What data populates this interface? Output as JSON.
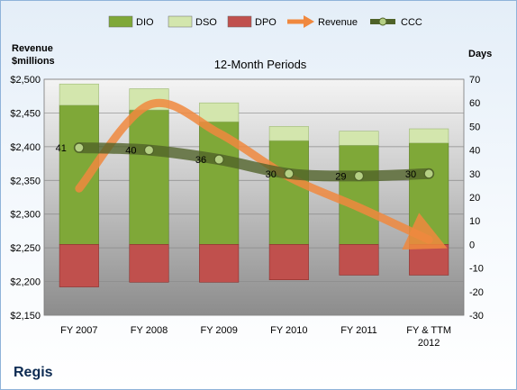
{
  "company": "Regis",
  "chart_data": {
    "type": "bar",
    "title": "12-Month Periods",
    "left_axis_label": [
      "Revenue",
      "$millions"
    ],
    "right_axis_label": "Days",
    "categories": [
      [
        "FY 2007"
      ],
      [
        "FY 2008"
      ],
      [
        "FY 2009"
      ],
      [
        "FY 2010"
      ],
      [
        "FY 2011"
      ],
      [
        "FY & TTM",
        "2012"
      ]
    ],
    "left_ylim": [
      2150,
      2500
    ],
    "left_ticks": [
      2150,
      2200,
      2250,
      2300,
      2350,
      2400,
      2450,
      2500
    ],
    "left_tick_labels": [
      "$2,150",
      "$2,200",
      "$2,250",
      "$2,300",
      "$2,350",
      "$2,400",
      "$2,450",
      "$2,500"
    ],
    "right_ylim": [
      -30,
      70
    ],
    "right_ticks": [
      -30,
      -20,
      -10,
      0,
      10,
      20,
      30,
      40,
      50,
      60,
      70
    ],
    "grid": true,
    "legend_position": "top",
    "series": [
      {
        "name": "DIO",
        "type": "stacked-bar",
        "axis": "right",
        "color": "#7fa838",
        "values": [
          59,
          57,
          52,
          44,
          42,
          43
        ]
      },
      {
        "name": "DSO",
        "type": "stacked-bar",
        "axis": "right",
        "color": "#d3e6ad",
        "values": [
          9,
          9,
          8,
          6,
          6,
          6
        ]
      },
      {
        "name": "DPO",
        "type": "negative-bar",
        "axis": "right",
        "color": "#c0504d",
        "values": [
          -18,
          -16,
          -16,
          -15,
          -13,
          -13
        ]
      },
      {
        "name": "Revenue",
        "type": "line",
        "axis": "left",
        "color": "#f0883e",
        "values": [
          2338,
          2462,
          2420,
          2355,
          2310,
          2262
        ]
      },
      {
        "name": "CCC",
        "type": "line",
        "axis": "right",
        "color": "#4f6228",
        "values": [
          41,
          40,
          36,
          30,
          29,
          30
        ],
        "labels": [
          "41",
          "40",
          "36",
          "30",
          "29",
          "30"
        ]
      }
    ]
  }
}
